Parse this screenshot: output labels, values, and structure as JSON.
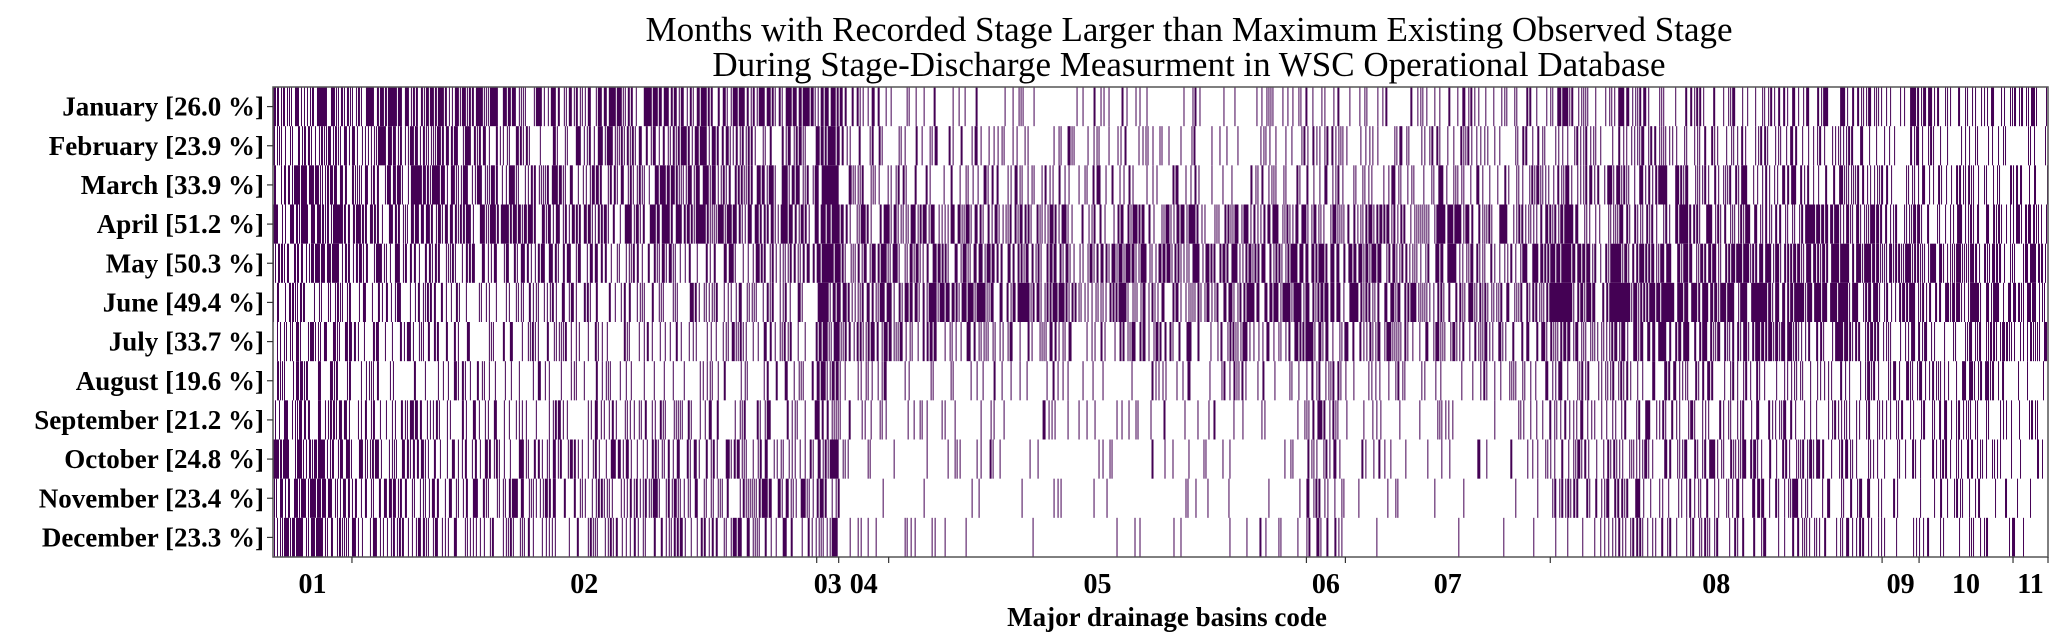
{
  "chart_data": {
    "type": "heatmap",
    "title": [
      "Months with Recorded Stage Larger than Maximum Existing Observed Stage",
      "During Stage-Discharge Measurment in WSC Operational Database"
    ],
    "xlabel": "Major drainage basins code",
    "ylabel": "",
    "y_categories": [
      "January [26.0 %]",
      "February [23.9 %]",
      "March [33.9 %]",
      "April [51.2 %]",
      "May [50.3 %]",
      "June [49.4 %]",
      "July [33.7 %]",
      "August [19.6 %]",
      "September [21.2 %]",
      "October [24.8 %]",
      "November [23.4 %]",
      "December [23.3 %]"
    ],
    "months": [
      "January",
      "February",
      "March",
      "April",
      "May",
      "June",
      "July",
      "August",
      "September",
      "October",
      "November",
      "December"
    ],
    "month_percent": [
      26.0,
      23.9,
      33.9,
      51.2,
      50.3,
      49.4,
      33.7,
      19.6,
      21.2,
      24.8,
      23.4,
      23.3
    ],
    "values_meaning": "1 = recorded stage exceeded max observed stage (dark), 0 = not (white)",
    "colors": {
      "on": "#440154",
      "off": "#ffffff"
    },
    "basins": [
      {
        "code": "01",
        "approx_stations": 79,
        "density_by_month": [
          0.5,
          0.5,
          0.6,
          0.7,
          0.5,
          0.4,
          0.4,
          0.3,
          0.4,
          0.6,
          0.6,
          0.6
        ]
      },
      {
        "code": "02",
        "approx_stations": 465,
        "density_by_month": [
          0.6,
          0.5,
          0.5,
          0.6,
          0.4,
          0.3,
          0.25,
          0.2,
          0.25,
          0.35,
          0.35,
          0.35
        ]
      },
      {
        "code": "03",
        "approx_stations": 22,
        "density_by_month": [
          0.8,
          0.8,
          0.8,
          0.85,
          0.8,
          0.8,
          0.7,
          0.5,
          0.6,
          0.6,
          0.6,
          0.6
        ]
      },
      {
        "code": "04",
        "approx_stations": 50,
        "density_by_month": [
          0.3,
          0.2,
          0.3,
          0.6,
          0.6,
          0.6,
          0.4,
          0.2,
          0.2,
          0.15,
          0.1,
          0.1
        ]
      },
      {
        "code": "05",
        "approx_stations": 418,
        "density_by_month": [
          0.15,
          0.15,
          0.2,
          0.45,
          0.5,
          0.55,
          0.35,
          0.15,
          0.1,
          0.08,
          0.05,
          0.05
        ]
      },
      {
        "code": "06",
        "approx_stations": 39,
        "density_by_month": [
          0.3,
          0.3,
          0.35,
          0.5,
          0.6,
          0.6,
          0.5,
          0.35,
          0.35,
          0.4,
          0.35,
          0.3
        ]
      },
      {
        "code": "07",
        "approx_stations": 205,
        "density_by_month": [
          0.2,
          0.2,
          0.25,
          0.45,
          0.5,
          0.45,
          0.35,
          0.2,
          0.1,
          0.1,
          0.05,
          0.04
        ]
      },
      {
        "code": "08",
        "approx_stations": 332,
        "density_by_month": [
          0.35,
          0.3,
          0.4,
          0.5,
          0.65,
          0.7,
          0.5,
          0.3,
          0.3,
          0.35,
          0.3,
          0.25
        ]
      },
      {
        "code": "09",
        "approx_stations": 37,
        "density_by_month": [
          0.3,
          0.2,
          0.3,
          0.4,
          0.6,
          0.6,
          0.4,
          0.3,
          0.2,
          0.15,
          0.15,
          0.1
        ]
      },
      {
        "code": "10",
        "approx_stations": 94,
        "density_by_month": [
          0.3,
          0.2,
          0.3,
          0.4,
          0.5,
          0.55,
          0.4,
          0.3,
          0.3,
          0.3,
          0.2,
          0.15
        ]
      },
      {
        "code": "11",
        "approx_stations": 35,
        "density_by_month": [
          0.3,
          0.2,
          0.3,
          0.4,
          0.4,
          0.5,
          0.35,
          0.2,
          0.1,
          0.1,
          0.1,
          0.05
        ]
      }
    ],
    "grid": false,
    "legend": "none"
  }
}
